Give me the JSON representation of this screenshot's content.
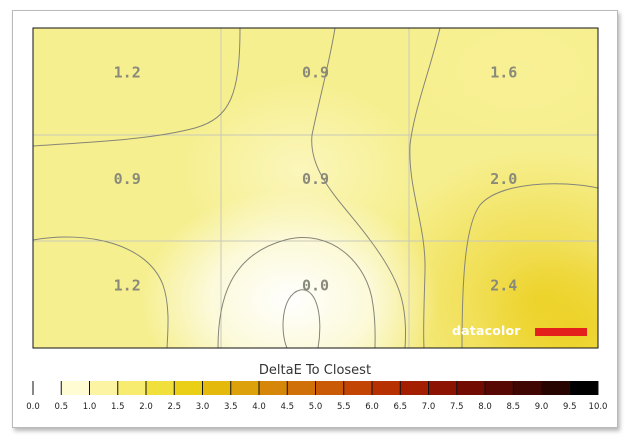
{
  "chart_data": {
    "type": "heatmap",
    "title": "",
    "rows": 3,
    "cols": 3,
    "cells": [
      [
        1.2,
        0.9,
        1.6
      ],
      [
        0.9,
        0.9,
        2.0
      ],
      [
        1.2,
        0.0,
        2.4
      ]
    ],
    "cell_labels": [
      [
        "1.2",
        "0.9",
        "1.6"
      ],
      [
        "0.9",
        "0.9",
        "2.0"
      ],
      [
        "1.2",
        "0.0",
        "2.4"
      ]
    ],
    "contours": true,
    "grid": true,
    "colorscale": {
      "title": "DeltaE To Closest",
      "range": [
        0.0,
        10.0
      ],
      "step": 0.5,
      "tick_labels": [
        "0.0",
        "0.5",
        "1.0",
        "1.5",
        "2.0",
        "2.5",
        "3.0",
        "3.5",
        "4.0",
        "4.5",
        "5.0",
        "5.5",
        "6.0",
        "6.5",
        "7.0",
        "7.5",
        "8.0",
        "8.5",
        "9.0",
        "9.5",
        "10.0"
      ],
      "colors": [
        "#ffffff",
        "#fffbd2",
        "#fdf4a3",
        "#f7ec6f",
        "#f1df3b",
        "#ebcf16",
        "#e4b90c",
        "#dca10b",
        "#d6870a",
        "#d07008",
        "#ca5a06",
        "#c24504",
        "#b73002",
        "#a41e02",
        "#8c1202",
        "#720c02",
        "#580802",
        "#3f0602",
        "#280401",
        "#000000"
      ]
    },
    "brand": {
      "text": "datacolor",
      "bar_color": "#e3201b"
    }
  }
}
